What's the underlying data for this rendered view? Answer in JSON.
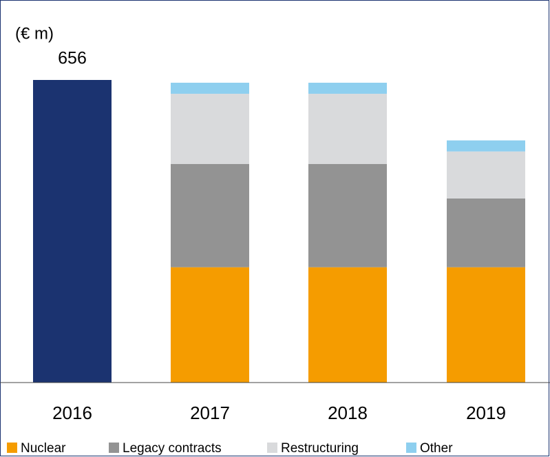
{
  "chart_data": {
    "type": "bar",
    "stacked": true,
    "y_label": "(€ m)",
    "categories": [
      "2016",
      "2017",
      "2018",
      "2019"
    ],
    "series": [
      {
        "color": "#1b3370",
        "values": [
          656,
          null,
          null,
          null
        ]
      },
      {
        "name": "Nuclear",
        "color": "#f59c00",
        "values": [
          null,
          250,
          250,
          250
        ]
      },
      {
        "name": "Legacy contracts",
        "color": "#939393",
        "values": [
          null,
          224,
          224,
          149
        ]
      },
      {
        "name": "Restructuring",
        "color": "#d9dadc",
        "values": [
          null,
          152,
          152,
          102
        ]
      },
      {
        "name": "Other",
        "color": "#8ecfef",
        "values": [
          null,
          24,
          24,
          24
        ]
      }
    ],
    "data_labels": [
      0
    ],
    "ylim": [
      0,
      700
    ]
  }
}
